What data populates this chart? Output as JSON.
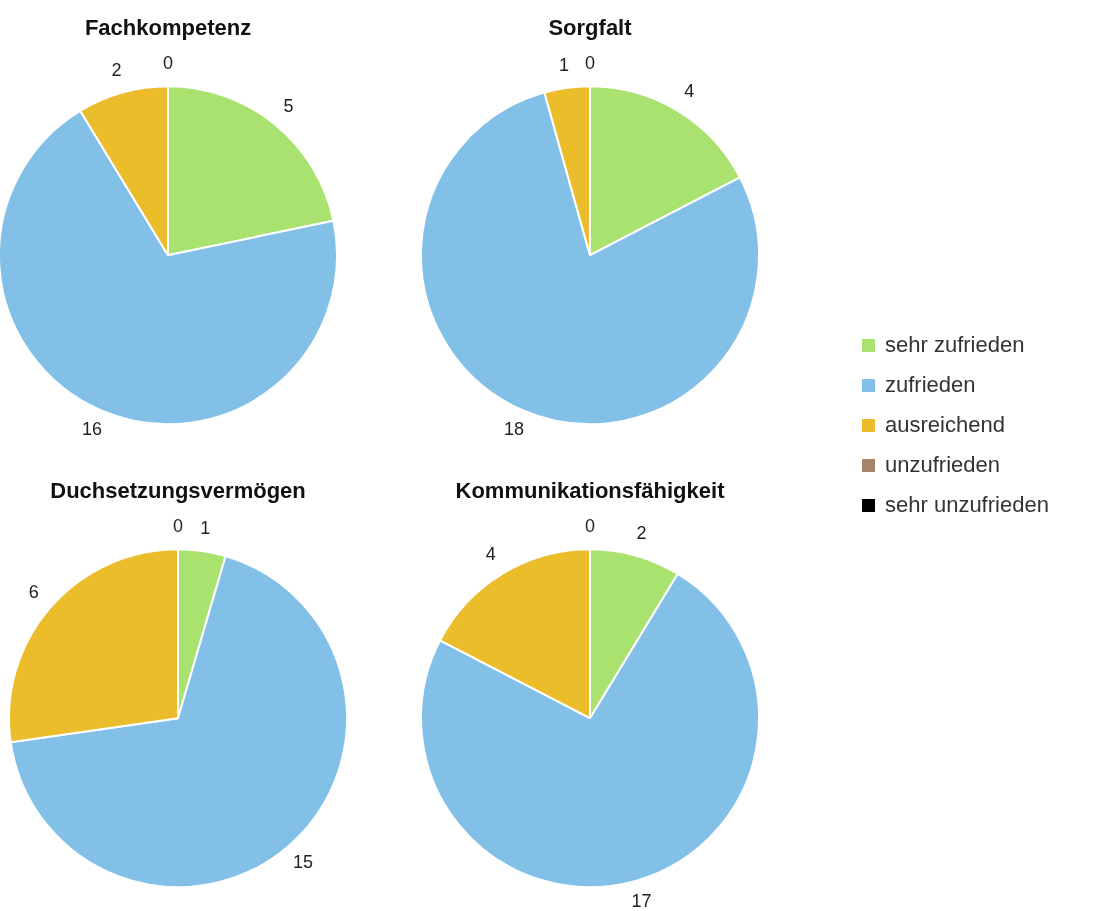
{
  "chart_data": [
    {
      "type": "pie",
      "title": "Fachkompetenz",
      "categories": [
        "sehr zufrieden",
        "zufrieden",
        "ausreichend",
        "unzufrieden",
        "sehr unzufrieden"
      ],
      "values": [
        5,
        16,
        2,
        0,
        0
      ],
      "colors": [
        "#a9e26f",
        "#83c0e8",
        "#ebbd2a",
        "#a6856a",
        "#000000"
      ],
      "value_labels": [
        "5",
        "16",
        "2",
        "0",
        null
      ],
      "legend": "right"
    },
    {
      "type": "pie",
      "title": "Sorgfalt",
      "categories": [
        null,
        null,
        null,
        null,
        null
      ],
      "values": [
        4,
        18,
        1,
        0,
        0
      ],
      "colors": [
        "#a9e26f",
        "#83c0e8",
        "#ebbd2a",
        "#a6856a",
        "#000000"
      ],
      "value_labels": [
        "4",
        "18",
        "1",
        "0",
        null
      ]
    },
    {
      "type": "pie",
      "title": "Duchsetzungsvermögen",
      "categories": [
        null,
        null,
        null,
        null,
        null
      ],
      "values": [
        1,
        15,
        6,
        0,
        0
      ],
      "colors": [
        "#a9e26f",
        "#83c0e8",
        "#ebbd2a",
        "#a6856a",
        "#000000"
      ],
      "value_labels": [
        "1",
        "15",
        "6",
        "0",
        null
      ]
    },
    {
      "type": "pie",
      "title": "Kommunikationsfähigkeit",
      "categories": [
        null,
        null,
        null,
        null,
        null
      ],
      "values": [
        2,
        17,
        4,
        0,
        0
      ],
      "colors": [
        "#a9e26f",
        "#83c0e8",
        "#ebbd2a",
        "#a6856a",
        "#000000"
      ],
      "value_labels": [
        "2",
        "17",
        "4",
        "0",
        null
      ]
    }
  ]
}
